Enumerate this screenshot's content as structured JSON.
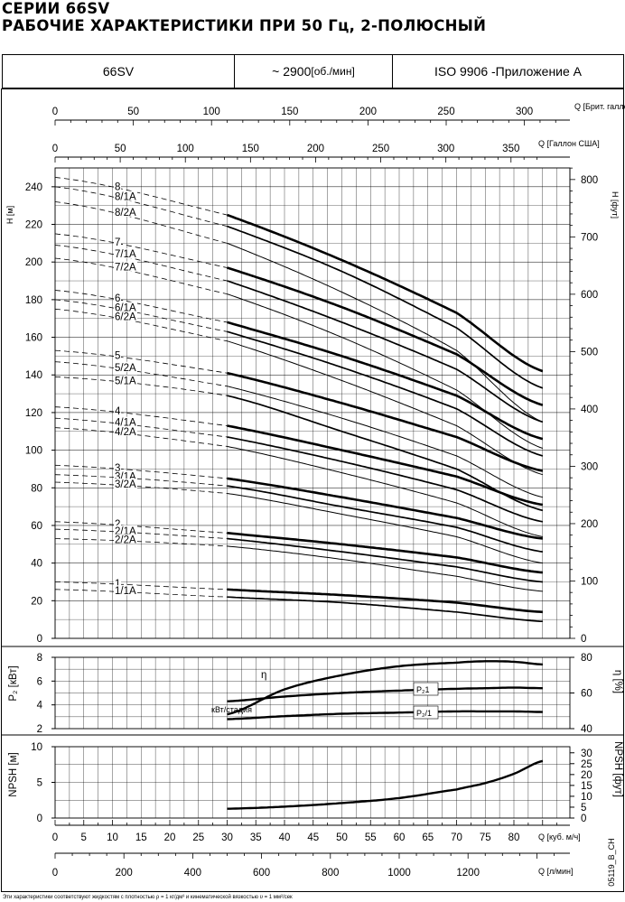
{
  "title": {
    "line1": "СЕРИИ 66SV",
    "line2": "РАБОЧИЕ ХАРАКТЕРИСТИКИ ПРИ 50 Гц, 2-ПОЛЮСНЫЙ"
  },
  "header": {
    "model": "66SV",
    "speed_prefix": "~ 2900 ",
    "speed_unit": "[об./мин]",
    "standard": "ISO 9906 - ",
    "standard_suffix": "Приложение A"
  },
  "code": "05119_B_CH",
  "footnote": "Эти характеристики соответствуют жидкостям с плотностью ρ = 1 кг/дм³ и кинематической вязкостью υ = 1 мм²/сек",
  "chart_data": [
    {
      "type": "line",
      "panel": "head",
      "ylabel": "H [м]",
      "ylabel_right": "H [фут]",
      "ylim": [
        0,
        250
      ],
      "yticks": [
        0,
        20,
        40,
        60,
        80,
        100,
        120,
        140,
        160,
        180,
        200,
        220,
        240
      ],
      "ylim_right_ft": [
        0,
        820
      ],
      "yticks_right": [
        0,
        100,
        200,
        300,
        400,
        500,
        600,
        700,
        800
      ],
      "xlim": [
        0,
        85
      ],
      "xlabel": "Q [куб. м/ч]",
      "x": [
        0,
        30,
        50,
        70,
        85
      ],
      "recommended_range": [
        30,
        85
      ],
      "grid": true,
      "series": [
        {
          "name": "8",
          "values": [
            245,
            225,
            201,
            173,
            142
          ]
        },
        {
          "name": "8/1A",
          "values": [
            240,
            219,
            195,
            165,
            133
          ]
        },
        {
          "name": "8/2A",
          "values": [
            232,
            210,
            184,
            153,
            115
          ]
        },
        {
          "name": "7",
          "values": [
            215,
            197,
            176,
            151,
            124
          ]
        },
        {
          "name": "7/1A",
          "values": [
            209,
            190,
            168,
            143,
            115
          ]
        },
        {
          "name": "7/2A",
          "values": [
            202,
            183,
            160,
            132,
            101
          ]
        },
        {
          "name": "6",
          "values": [
            185,
            168,
            150,
            129,
            106
          ]
        },
        {
          "name": "6/1A",
          "values": [
            180,
            163,
            144,
            122,
            97
          ]
        },
        {
          "name": "6/2A",
          "values": [
            175,
            158,
            137,
            113,
            87
          ]
        },
        {
          "name": "5",
          "values": [
            153,
            141,
            125,
            107,
            89
          ]
        },
        {
          "name": "5/2A",
          "values": [
            147,
            134,
            117,
            97,
            75
          ]
        },
        {
          "name": "5/1A",
          "values": [
            139,
            129,
            110,
            90,
            68
          ]
        },
        {
          "name": "4",
          "values": [
            123,
            113,
            100,
            86,
            71
          ]
        },
        {
          "name": "4/1A",
          "values": [
            117,
            107,
            94,
            79,
            62
          ]
        },
        {
          "name": "4/2A",
          "values": [
            112,
            102,
            88,
            72,
            54
          ]
        },
        {
          "name": "3",
          "values": [
            92,
            85,
            75,
            64,
            53
          ]
        },
        {
          "name": "3/1A",
          "values": [
            87,
            81,
            70,
            59,
            46
          ]
        },
        {
          "name": "3/2A",
          "values": [
            83,
            77,
            66,
            54,
            40
          ]
        },
        {
          "name": "2",
          "values": [
            62,
            56,
            50,
            43,
            35
          ]
        },
        {
          "name": "2/1A",
          "values": [
            58,
            53,
            46,
            38,
            30
          ]
        },
        {
          "name": "2/2A",
          "values": [
            53,
            49,
            42,
            33,
            25
          ]
        },
        {
          "name": "1",
          "values": [
            30,
            26,
            23,
            19,
            14
          ]
        },
        {
          "name": "1/1A",
          "values": [
            26,
            22,
            19,
            14,
            9
          ]
        }
      ]
    },
    {
      "type": "line",
      "panel": "power_efficiency",
      "ylabel": "P₂ [кВт]",
      "ylabel_right": "η [%]",
      "ylim": [
        2,
        8
      ],
      "yticks": [
        2,
        4,
        6,
        8
      ],
      "ylim_right": [
        40,
        80
      ],
      "yticks_right": [
        40,
        60,
        80
      ],
      "annotation": "кВт/стадия",
      "x": [
        30,
        40,
        50,
        60,
        70,
        75,
        80,
        85
      ],
      "series": [
        {
          "name": "η",
          "axis": "right",
          "values": [
            48,
            62,
            70,
            75,
            77,
            77.8,
            77.5,
            76
          ]
        },
        {
          "name": "P₂1",
          "axis": "left",
          "values": [
            4.3,
            4.7,
            5.0,
            5.2,
            5.35,
            5.4,
            5.45,
            5.4
          ]
        },
        {
          "name": "P₂/1",
          "axis": "left",
          "values": [
            2.8,
            3.05,
            3.25,
            3.35,
            3.45,
            3.45,
            3.45,
            3.4
          ]
        }
      ]
    },
    {
      "type": "line",
      "panel": "npsh",
      "ylabel": "NPSH [м]",
      "ylabel_right": "NPSH [фут]",
      "ylim": [
        0,
        10
      ],
      "yticks": [
        0,
        5,
        10
      ],
      "yticks_right": [
        0,
        5,
        10,
        15,
        20,
        25,
        30
      ],
      "x": [
        30,
        40,
        50,
        60,
        70,
        75,
        80,
        85
      ],
      "series": [
        {
          "values": [
            1.3,
            1.6,
            2.1,
            2.8,
            4.0,
            4.9,
            6.2,
            8.0
          ]
        }
      ]
    },
    {
      "type": "axes",
      "panel": "flow_scales",
      "q_m3h": {
        "label": "Q [куб. м/ч]",
        "ticks": [
          0,
          5,
          10,
          15,
          20,
          25,
          30,
          35,
          40,
          45,
          50,
          55,
          60,
          65,
          70,
          75,
          80
        ]
      },
      "q_lmin": {
        "label": "Q [л/мин]",
        "ticks": [
          0,
          200,
          400,
          600,
          800,
          1000,
          1200
        ]
      },
      "q_usgpm": {
        "label": "Q [Галлон США]",
        "ticks": [
          0,
          50,
          100,
          150,
          200,
          250,
          300,
          350
        ]
      },
      "q_impgpm": {
        "label": "Q [Брит. галлон]",
        "ticks": [
          0,
          50,
          100,
          150,
          200,
          250,
          300
        ]
      }
    }
  ]
}
